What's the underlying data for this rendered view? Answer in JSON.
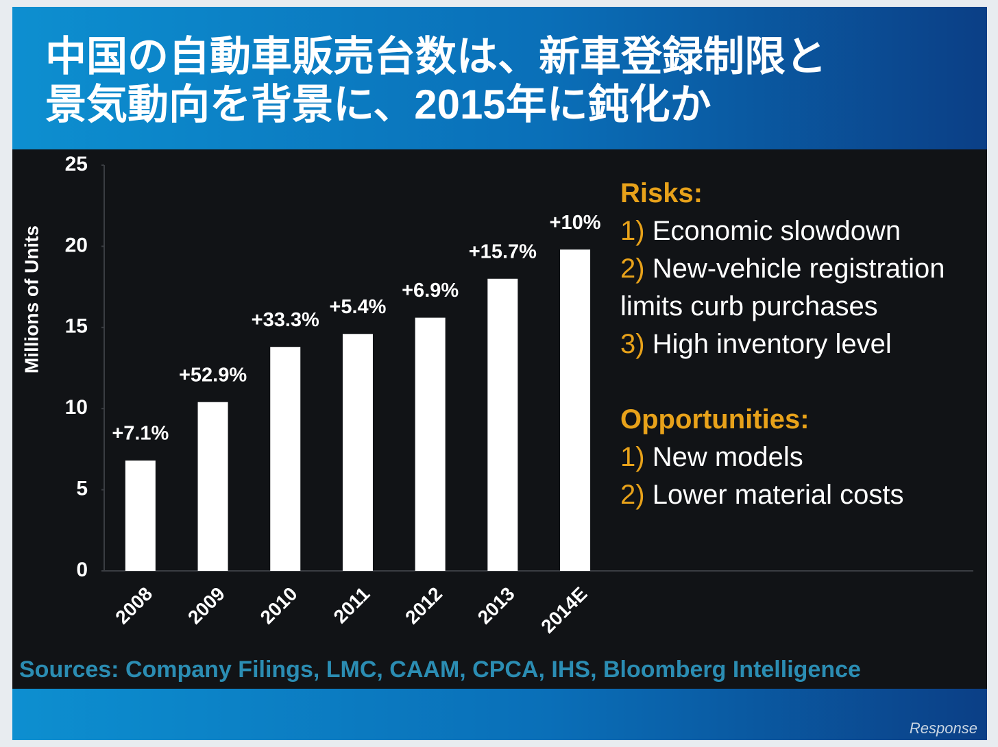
{
  "title": [
    "中国の自動車販売台数は、新車登録制限と",
    "景気動向を背景に、2015年に鈍化か"
  ],
  "chart_data": {
    "type": "bar",
    "y_label": "Millions of Units",
    "categories": [
      "2008",
      "2009",
      "2010",
      "2011",
      "2012",
      "2013",
      "2014E"
    ],
    "values": [
      6.8,
      10.4,
      13.8,
      14.6,
      15.6,
      18.0,
      19.8
    ],
    "annotations": [
      "+7.1%",
      "+52.9%",
      "+33.3%",
      "+5.4%",
      "+6.9%",
      "+15.7%",
      "+10%"
    ],
    "color": "#ffffff",
    "ylim": [
      0,
      25
    ],
    "yticks": [
      0,
      5,
      10,
      15,
      20,
      25
    ]
  },
  "notes": {
    "risks": {
      "heading": "Risks:",
      "items": [
        {
          "number": "1)",
          "text": "Economic slowdown"
        },
        {
          "number": "2)",
          "text": "New-vehicle registration limits curb purchases"
        },
        {
          "number": "3)",
          "text": "High inventory  level"
        }
      ]
    },
    "opportunities": {
      "heading": "Opportunities:",
      "items": [
        {
          "number": "1)",
          "text": "New models"
        },
        {
          "number": "2)",
          "text": "Lower material costs"
        }
      ]
    }
  },
  "source": "Sources: Company Filings, LMC, CAAM, CPCA, IHS, Bloomberg Intelligence",
  "watermark": "Response"
}
